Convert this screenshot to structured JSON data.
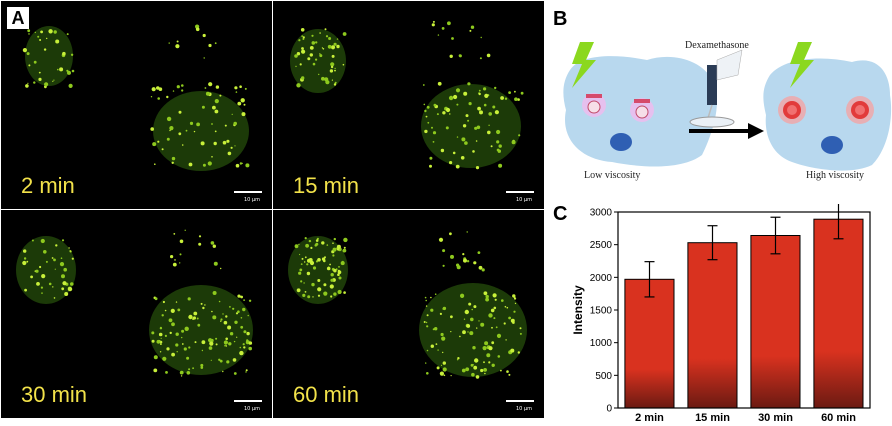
{
  "panels": {
    "a_label": "A",
    "b_label": "B",
    "c_label": "C"
  },
  "micrographs": [
    {
      "time": "2 min",
      "scale": "10 µm"
    },
    {
      "time": "15 min",
      "scale": "10 µm"
    },
    {
      "time": "30 min",
      "scale": "10 µm"
    },
    {
      "time": "60 min",
      "scale": "10 µm"
    }
  ],
  "diagram": {
    "drug_label": "Dexamethasone",
    "left_caption": "Low viscosity",
    "right_caption": "High viscosity",
    "colors": {
      "cell": "#b8d8ee",
      "nucleus": "#2f5fb3",
      "probe_low": "#c98ad6",
      "probe_high": "#e23b3b",
      "bolt": "#8bd81f"
    }
  },
  "chart_data": {
    "type": "bar",
    "categories": [
      "2 min",
      "15 min",
      "30 min",
      "60 min"
    ],
    "values": [
      1970,
      2530,
      2640,
      2890
    ],
    "errors": [
      270,
      260,
      280,
      300
    ],
    "title": "",
    "xlabel": "",
    "ylabel": "Intensity",
    "ylim": [
      0,
      3000
    ],
    "yticks": [
      0,
      500,
      1000,
      1500,
      2000,
      2500,
      3000
    ],
    "grid": false,
    "bar_color_top": "#d9321f",
    "bar_color_bottom": "#6b1a12"
  }
}
